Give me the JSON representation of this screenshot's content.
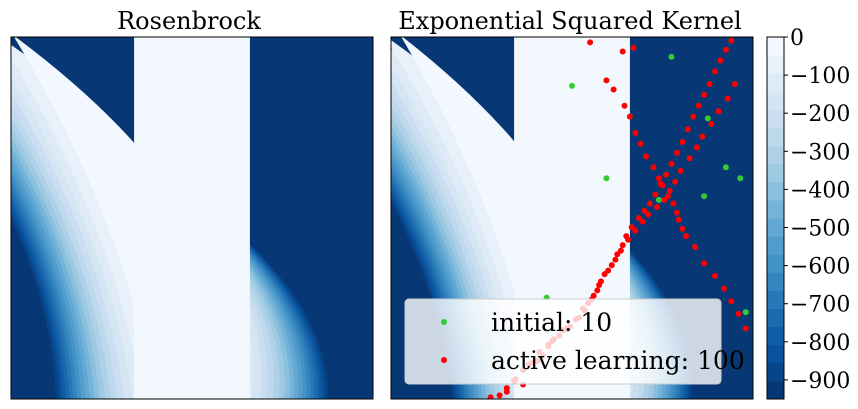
{
  "chart_data": [
    {
      "type": "heatmap",
      "title": "Rosenbrock",
      "kind": "filled-contour",
      "colormap": "Blues_r",
      "axes": {
        "xticks": false,
        "yticks": false
      }
    },
    {
      "type": "scatter",
      "title": "Exponential Squared Kernel",
      "kind": "filled-contour with overlaid samples",
      "colormap": "Blues_r",
      "axes": {
        "xticks": false,
        "yticks": false
      },
      "series": [
        {
          "name": "initial: 10",
          "color": "#33cc33",
          "points": [
            [
              0.0,
              0.73
            ],
            [
              0.55,
              0.89
            ],
            [
              0.75,
              0.55
            ],
            [
              0.85,
              0.28
            ],
            [
              0.96,
              -0.52
            ],
            [
              0.19,
              0.22
            ],
            [
              0.73,
              0.12
            ],
            [
              0.48,
              0.1
            ],
            [
              -0.14,
              -0.44
            ],
            [
              0.93,
              0.22
            ]
          ]
        },
        {
          "name": "active learning: 100",
          "color": "#ff0000",
          "points": [
            [
              0.1,
              0.97
            ],
            [
              0.28,
              0.92
            ],
            [
              0.34,
              0.94
            ],
            [
              0.19,
              0.76
            ],
            [
              0.23,
              0.71
            ],
            [
              0.29,
              0.62
            ],
            [
              0.32,
              0.56
            ],
            [
              0.35,
              0.47
            ],
            [
              0.38,
              0.41
            ],
            [
              0.41,
              0.34
            ],
            [
              0.45,
              0.28
            ],
            [
              0.48,
              0.22
            ],
            [
              0.5,
              0.18
            ],
            [
              0.53,
              0.12
            ],
            [
              0.56,
              0.08
            ],
            [
              0.58,
              0.03
            ],
            [
              0.59,
              -0.01
            ],
            [
              0.61,
              -0.06
            ],
            [
              0.63,
              -0.1
            ],
            [
              0.68,
              -0.16
            ],
            [
              0.73,
              -0.25
            ],
            [
              0.79,
              -0.32
            ],
            [
              0.84,
              -0.39
            ],
            [
              0.88,
              -0.46
            ],
            [
              0.92,
              -0.53
            ],
            [
              0.96,
              -0.61
            ],
            [
              -0.01,
              -0.6
            ],
            [
              -0.05,
              -0.62
            ],
            [
              -0.1,
              -0.67
            ],
            [
              -0.13,
              -0.7
            ],
            [
              -0.18,
              -0.74
            ],
            [
              -0.22,
              -0.8
            ],
            [
              -0.27,
              -0.84
            ],
            [
              -0.32,
              -0.9
            ],
            [
              -0.36,
              -0.94
            ],
            [
              -0.4,
              -0.98
            ],
            [
              -0.36,
              -0.96
            ],
            [
              -0.27,
              -0.92
            ],
            [
              -0.19,
              -0.79
            ],
            [
              -0.13,
              -0.71
            ],
            [
              -0.07,
              -0.65
            ],
            [
              0.02,
              -0.56
            ],
            [
              0.06,
              -0.5
            ],
            [
              0.09,
              -0.47
            ],
            [
              0.12,
              -0.43
            ],
            [
              0.15,
              -0.37
            ],
            [
              0.18,
              -0.31
            ],
            [
              0.22,
              -0.26
            ],
            [
              0.25,
              -0.2
            ],
            [
              0.28,
              -0.15
            ],
            [
              0.3,
              -0.1
            ],
            [
              0.33,
              -0.05
            ],
            [
              0.37,
              0.0
            ],
            [
              0.4,
              0.04
            ],
            [
              0.43,
              0.08
            ],
            [
              0.46,
              0.13
            ],
            [
              0.49,
              0.19
            ],
            [
              0.52,
              0.24
            ],
            [
              0.55,
              0.3
            ],
            [
              0.58,
              0.36
            ],
            [
              0.61,
              0.42
            ],
            [
              0.64,
              0.49
            ],
            [
              0.67,
              0.56
            ],
            [
              0.7,
              0.62
            ],
            [
              0.73,
              0.68
            ],
            [
              0.76,
              0.74
            ],
            [
              0.79,
              0.81
            ],
            [
              0.82,
              0.87
            ],
            [
              0.85,
              0.93
            ],
            [
              0.88,
              0.98
            ],
            [
              -0.45,
              -0.99
            ],
            [
              -0.31,
              -0.89
            ],
            [
              -0.24,
              -0.81
            ],
            [
              -0.16,
              -0.76
            ],
            [
              -0.11,
              -0.68
            ],
            [
              -0.03,
              -0.61
            ],
            [
              0.04,
              -0.55
            ],
            [
              0.07,
              -0.51
            ],
            [
              0.11,
              -0.45
            ],
            [
              0.14,
              -0.4
            ],
            [
              0.16,
              -0.35
            ],
            [
              0.2,
              -0.29
            ],
            [
              0.24,
              -0.23
            ],
            [
              0.27,
              -0.18
            ],
            [
              0.31,
              -0.12
            ],
            [
              0.35,
              -0.07
            ],
            [
              0.39,
              -0.02
            ],
            [
              0.42,
              0.02
            ],
            [
              0.47,
              0.06
            ],
            [
              0.51,
              0.1
            ],
            [
              0.54,
              0.15
            ],
            [
              0.57,
              0.2
            ],
            [
              0.6,
              0.26
            ],
            [
              0.65,
              0.33
            ],
            [
              0.69,
              0.39
            ],
            [
              0.72,
              0.45
            ],
            [
              0.77,
              0.52
            ],
            [
              0.81,
              0.59
            ],
            [
              0.86,
              0.66
            ],
            [
              0.9,
              0.74
            ]
          ]
        }
      ],
      "legend": {
        "placement": "lower-center"
      }
    }
  ],
  "colorbar": {
    "ticks": [
      "0",
      "−100",
      "−200",
      "−300",
      "−400",
      "−500",
      "−600",
      "−700",
      "−800",
      "−900"
    ],
    "range": [
      -950,
      0
    ]
  }
}
